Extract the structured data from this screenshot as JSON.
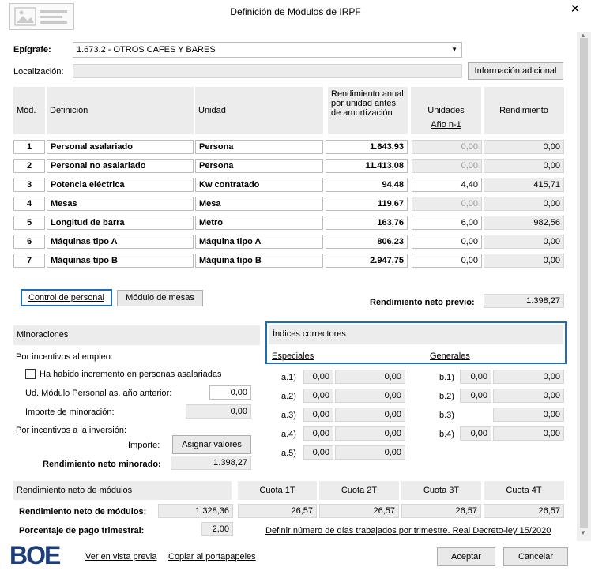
{
  "window": {
    "title": "Definición de Módulos de IRPF",
    "close_icon": "close-icon"
  },
  "epigrafe": {
    "label": "Epígrafe:",
    "value": "1.673.2 - OTROS CAFES Y BARES"
  },
  "localizacion": {
    "label": "Localización:",
    "value": "",
    "button": "Información adicional"
  },
  "table": {
    "headers": {
      "mod": "Mód.",
      "definicion": "Definición",
      "unidad": "Unidad",
      "rendimiento_anual": "Rendimiento anual por unidad antes de amortización",
      "unidades": "Unidades",
      "ano_n1": "Año n-1",
      "rendimiento": "Rendimiento"
    },
    "rows": [
      {
        "mod": "1",
        "definicion": "Personal asalariado",
        "unidad": "Persona",
        "rend_unit": "1.643,93",
        "unidades": "0,00",
        "rendimiento": "0,00",
        "editable": false
      },
      {
        "mod": "2",
        "definicion": "Personal no asalariado",
        "unidad": "Persona",
        "rend_unit": "11.413,08",
        "unidades": "0,00",
        "rendimiento": "0,00",
        "editable": false
      },
      {
        "mod": "3",
        "definicion": "Potencia eléctrica",
        "unidad": "Kw contratado",
        "rend_unit": "94,48",
        "unidades": "4,40",
        "rendimiento": "415,71",
        "editable": true
      },
      {
        "mod": "4",
        "definicion": "Mesas",
        "unidad": "Mesa",
        "rend_unit": "119,67",
        "unidades": "0,00",
        "rendimiento": "0,00",
        "editable": false
      },
      {
        "mod": "5",
        "definicion": "Longitud de barra",
        "unidad": "Metro",
        "rend_unit": "163,76",
        "unidades": "6,00",
        "rendimiento": "982,56",
        "editable": true
      },
      {
        "mod": "6",
        "definicion": "Máquinas tipo A",
        "unidad": "Máquina tipo A",
        "rend_unit": "806,23",
        "unidades": "0,00",
        "rendimiento": "0,00",
        "editable": true
      },
      {
        "mod": "7",
        "definicion": "Máquinas tipo B",
        "unidad": "Máquina tipo B",
        "rend_unit": "2.947,75",
        "unidades": "0,00",
        "rendimiento": "0,00",
        "editable": true
      }
    ]
  },
  "buttons": {
    "control_personal": "Control de personal",
    "modulo_mesas": "Módulo de mesas",
    "asignar_valores": "Asignar valores",
    "aceptar": "Aceptar",
    "cancelar": "Cancelar"
  },
  "rend_neto_previo": {
    "label": "Rendimiento neto previo:",
    "value": "1.398,27"
  },
  "minoraciones": {
    "title": "Minoraciones",
    "empleo_label": "Por incentivos al empleo:",
    "checkbox_label": "Ha habido incremento en personas asalariadas",
    "ud_modulo_label": "Ud. Módulo Personal as. año anterior:",
    "ud_modulo_value": "0,00",
    "importe_minoracion_label": "Importe de minoración:",
    "importe_minoracion_value": "0,00",
    "inversion_label": "Por incentivos a la inversión:",
    "importe_label": "Importe:",
    "rend_neto_minorado_label": "Rendimiento neto minorado:",
    "rend_neto_minorado_value": "1.398,27"
  },
  "indices": {
    "title": "Índices correctores",
    "especiales": "Especiales",
    "generales": "Generales",
    "a_rows": [
      {
        "label": "a.1)",
        "v1": "0,00",
        "v2": "0,00"
      },
      {
        "label": "a.2)",
        "v1": "0,00",
        "v2": "0,00"
      },
      {
        "label": "a.3)",
        "v1": "0,00",
        "v2": "0,00"
      },
      {
        "label": "a.4)",
        "v1": "0,00",
        "v2": "0,00"
      },
      {
        "label": "a.5)",
        "v1": "0,00",
        "v2": "0,00"
      }
    ],
    "b_rows": [
      {
        "label": "b.1)",
        "v1": "0,00",
        "v2": "0,00"
      },
      {
        "label": "b.2)",
        "v1": "0,00",
        "v2": "0,00"
      },
      {
        "label": "b.3)",
        "v1": "",
        "v2": "0,00"
      },
      {
        "label": "b.4)",
        "v1": "0,00",
        "v2": "0,00"
      }
    ]
  },
  "neto_modulos": {
    "section_title": "Rendimiento neto de módulos",
    "cuota_headers": [
      "Cuota 1T",
      "Cuota 2T",
      "Cuota 3T",
      "Cuota 4T"
    ],
    "rend_label": "Rendimiento neto de módulos:",
    "rend_value": "1.328,36",
    "cuotas": [
      "26,57",
      "26,57",
      "26,57",
      "26,57"
    ],
    "porcentaje_label": "Porcentaje de pago trimestral:",
    "porcentaje_value": "2,00",
    "dias_link": "Definir número de días trabajados por trimestre. Real Decreto-ley 15/2020"
  },
  "footer": {
    "logo_text": "BOE",
    "vista_previa": "Ver en vista previa",
    "copiar": "Copiar al portapapeles"
  }
}
